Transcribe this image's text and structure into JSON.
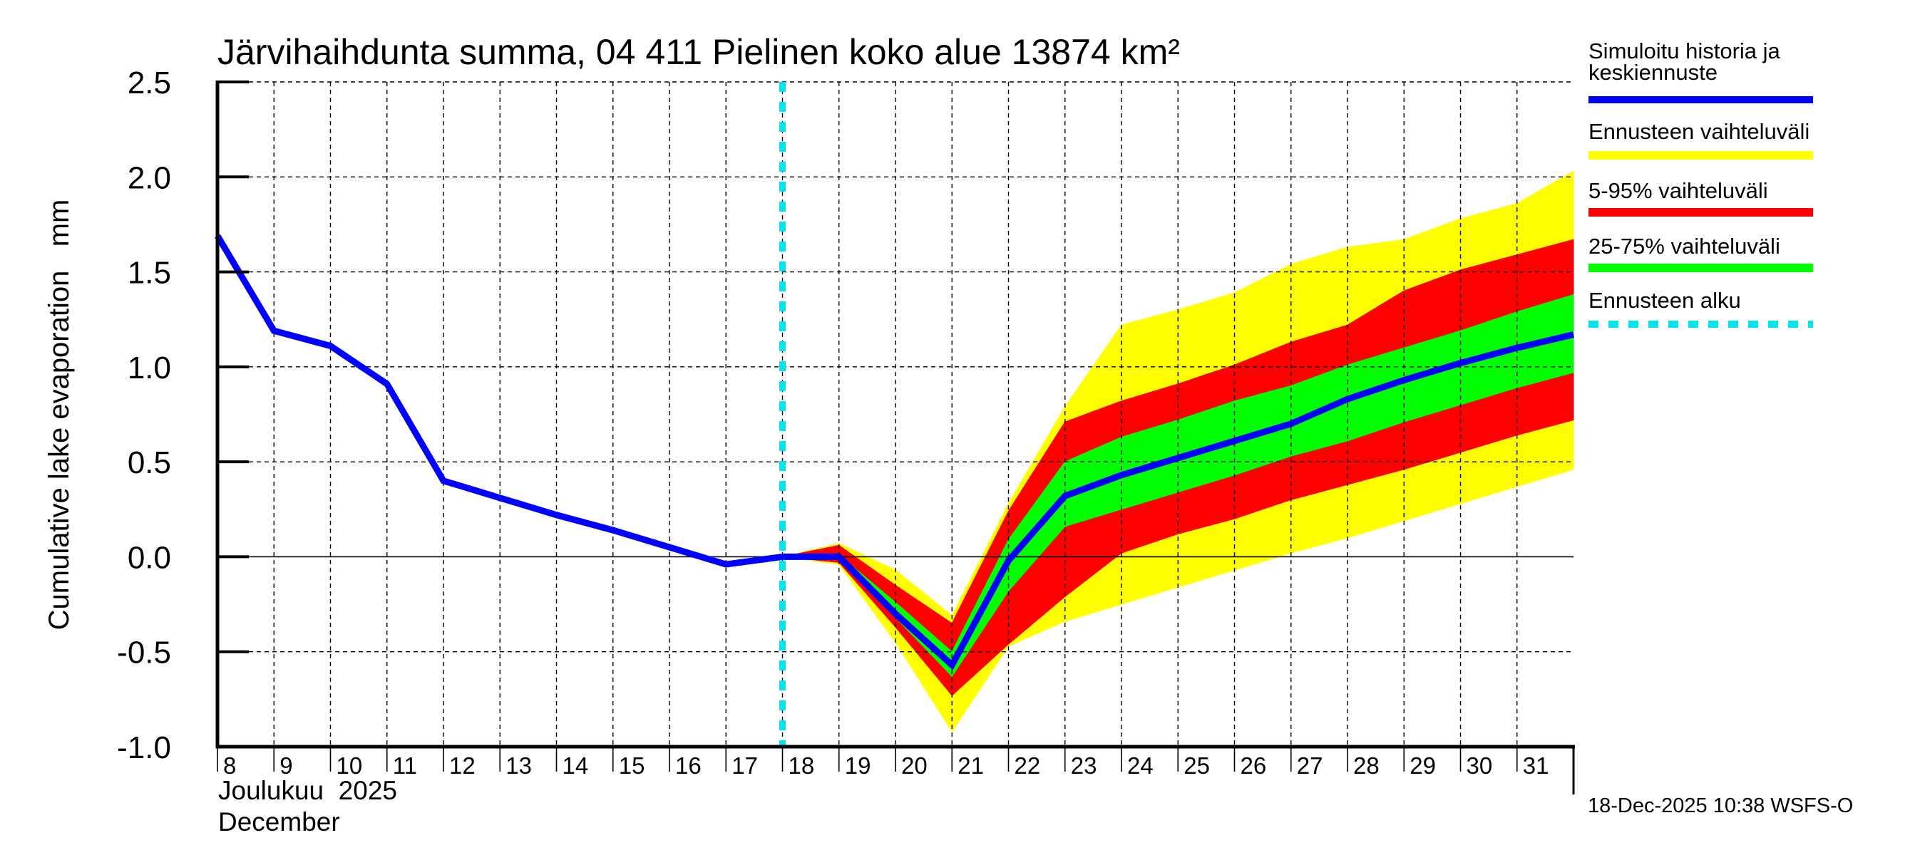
{
  "chart_data": {
    "type": "area",
    "title": "Järvihaihdunta summa, 04 411 Pielinen koko alue 13874 km²",
    "ylabel": "Cumulative lake evaporation   mm",
    "xlabel_line1": "Joulukuu  2025",
    "xlabel_line2": "December",
    "ylim": [
      -1.0,
      2.5
    ],
    "yticks": [
      2.5,
      2.0,
      1.5,
      1.0,
      0.5,
      0.0,
      -0.5,
      -1.0
    ],
    "ytick_labels": [
      "2.5",
      "2.0",
      "1.5",
      "1.0",
      "0.5",
      "0.0",
      "-0.5",
      "-1.0"
    ],
    "xlim_days": [
      8,
      32
    ],
    "xtick_days": [
      8,
      9,
      10,
      11,
      12,
      13,
      14,
      15,
      16,
      17,
      18,
      19,
      20,
      21,
      22,
      23,
      24,
      25,
      26,
      27,
      28,
      29,
      30,
      31
    ],
    "xtick_labels": [
      "8",
      "9",
      "10",
      "11",
      "12",
      "13",
      "14",
      "15",
      "16",
      "17",
      "18",
      "19",
      "20",
      "21",
      "22",
      "23",
      "24",
      "25",
      "26",
      "27",
      "28",
      "29",
      "30",
      "31"
    ],
    "grid": true,
    "forecast_start_day": 18,
    "history": {
      "name": "Simuloitu historia ja keskiennuste",
      "x": [
        8,
        9,
        10,
        11,
        12,
        13,
        14,
        15,
        16,
        17,
        18
      ],
      "y": [
        1.69,
        1.19,
        1.11,
        0.91,
        0.4,
        0.31,
        0.22,
        0.14,
        0.05,
        -0.04,
        0.0
      ]
    },
    "forecast": {
      "x": [
        18,
        19,
        20,
        21,
        22,
        23,
        24,
        25,
        26,
        27,
        28,
        29,
        30,
        31,
        32
      ],
      "median": [
        0.0,
        0.0,
        -0.3,
        -0.57,
        -0.02,
        0.32,
        0.43,
        0.52,
        0.61,
        0.7,
        0.83,
        0.93,
        1.02,
        1.1,
        1.17
      ],
      "p25": [
        0.0,
        -0.01,
        -0.32,
        -0.63,
        -0.18,
        0.16,
        0.25,
        0.34,
        0.43,
        0.53,
        0.61,
        0.71,
        0.8,
        0.89,
        0.97
      ],
      "p75": [
        0.0,
        0.01,
        -0.24,
        -0.5,
        0.09,
        0.5,
        0.63,
        0.72,
        0.82,
        0.9,
        1.01,
        1.1,
        1.19,
        1.29,
        1.38
      ],
      "p05": [
        0.0,
        -0.03,
        -0.37,
        -0.73,
        -0.46,
        -0.21,
        0.02,
        0.12,
        0.2,
        0.3,
        0.38,
        0.46,
        0.55,
        0.64,
        0.72
      ],
      "p95": [
        0.0,
        0.06,
        -0.15,
        -0.35,
        0.24,
        0.71,
        0.82,
        0.91,
        1.01,
        1.13,
        1.22,
        1.4,
        1.51,
        1.59,
        1.67
      ],
      "min": [
        0.0,
        -0.04,
        -0.45,
        -0.92,
        -0.47,
        -0.34,
        -0.25,
        -0.16,
        -0.07,
        0.02,
        0.1,
        0.19,
        0.28,
        0.37,
        0.46
      ],
      "max": [
        0.0,
        0.07,
        -0.07,
        -0.31,
        0.28,
        0.79,
        1.22,
        1.3,
        1.39,
        1.54,
        1.63,
        1.67,
        1.78,
        1.86,
        2.03
      ]
    },
    "legend": {
      "placement": "right",
      "entries": [
        {
          "label_line1": "Simuloitu historia ja",
          "label_line2": "keskiennuste",
          "color": "#0000ff",
          "style": "line"
        },
        {
          "label_line1": "Ennusteen vaihteluväli",
          "label_line2": "",
          "color": "#ffff00",
          "style": "band"
        },
        {
          "label_line1": "5-95% vaihteluväli",
          "label_line2": "",
          "color": "#ff0000",
          "style": "band"
        },
        {
          "label_line1": "25-75% vaihteluväli",
          "label_line2": "",
          "color": "#00ff00",
          "style": "band"
        },
        {
          "label_line1": "Ennusteen alku",
          "label_line2": "",
          "color": "#00e5ee",
          "style": "dashed"
        }
      ]
    },
    "colors": {
      "history": "#0000ff",
      "range_full": "#ffff00",
      "range_5_95": "#ff0000",
      "range_25_75": "#00ff00",
      "forecast_start": "#00e5ee"
    },
    "timestamp": "18-Dec-2025 10:38 WSFS-O"
  }
}
